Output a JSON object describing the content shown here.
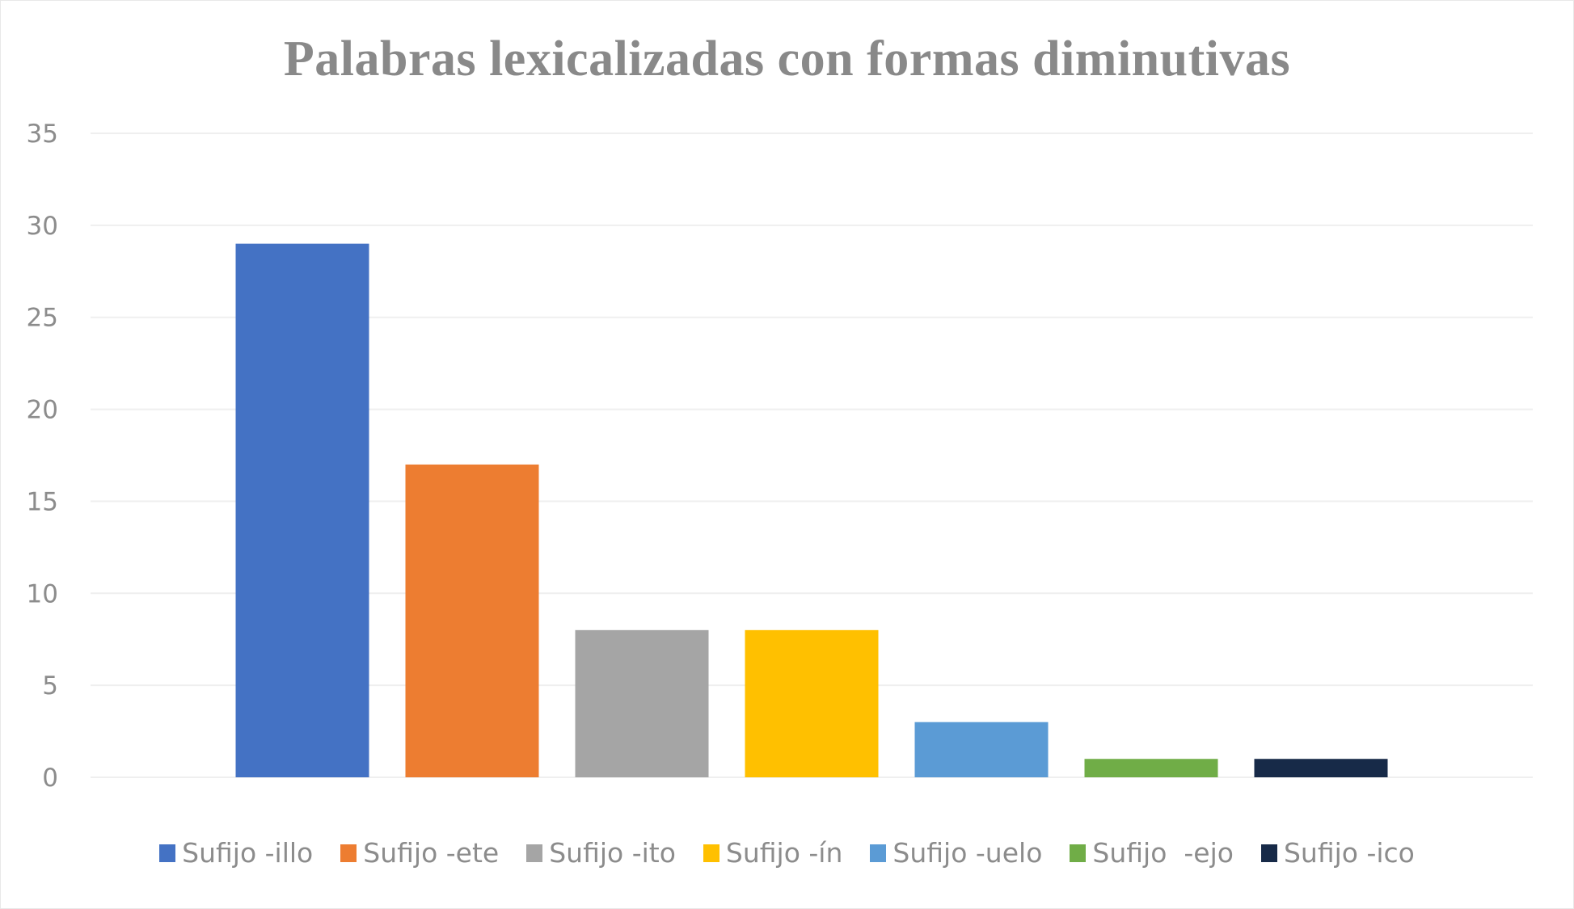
{
  "chart_data": {
    "type": "bar",
    "title": "Palabras lexicalizadas con formas diminutivas",
    "xlabel": "",
    "ylabel": "",
    "ylim": [
      0,
      35
    ],
    "yticks": [
      0,
      5,
      10,
      15,
      20,
      25,
      30,
      35
    ],
    "grid": true,
    "legend_position": "bottom",
    "categories": [
      ""
    ],
    "series": [
      {
        "name": "Sufijo -illo",
        "values": [
          29
        ],
        "color": "#4472C4"
      },
      {
        "name": "Sufijo -ete",
        "values": [
          17
        ],
        "color": "#ED7D31"
      },
      {
        "name": "Sufijo -ito",
        "values": [
          8
        ],
        "color": "#A5A5A5"
      },
      {
        "name": "Sufijo -ín",
        "values": [
          8
        ],
        "color": "#FFC000"
      },
      {
        "name": "Sufijo -uelo",
        "values": [
          3
        ],
        "color": "#5B9BD5"
      },
      {
        "name": "Sufijo  -ejo",
        "values": [
          1
        ],
        "color": "#70AD47"
      },
      {
        "name": "Sufijo -ico",
        "values": [
          1
        ],
        "color": "#172A48"
      }
    ]
  }
}
